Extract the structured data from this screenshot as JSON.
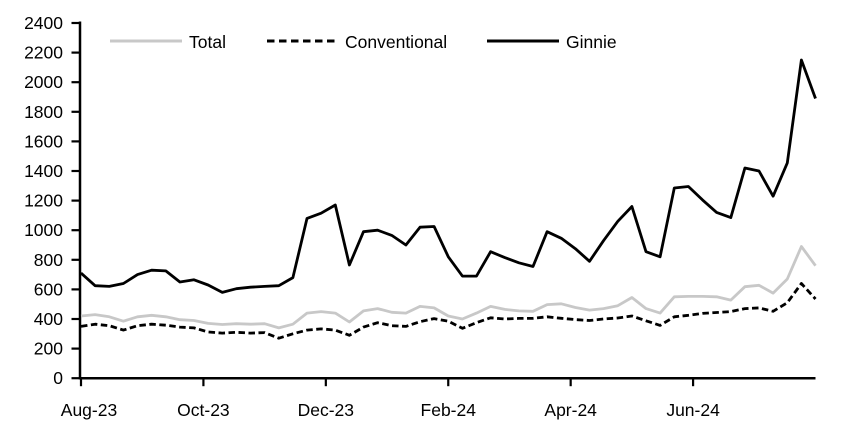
{
  "chart_data": {
    "type": "line",
    "title": "",
    "xlabel": "",
    "ylabel": "",
    "x_axis": {
      "tick_labels": [
        "Aug-23",
        "Oct-23",
        "Dec-23",
        "Feb-24",
        "Apr-24",
        "Jun-24"
      ],
      "range_note": "weekly points from Aug-23 to Aug-24, 53 points evenly spaced"
    },
    "y_axis": {
      "min": 0,
      "max": 2400,
      "step": 200,
      "tick_labels": [
        "0",
        "200",
        "400",
        "600",
        "800",
        "1000",
        "1200",
        "1400",
        "1600",
        "1800",
        "2000",
        "2200",
        "2400"
      ]
    },
    "legend_position": "top",
    "grid": false,
    "series": [
      {
        "name": "Total",
        "color": "#c8c8c8",
        "dash": "",
        "values": [
          420,
          430,
          415,
          385,
          415,
          425,
          415,
          395,
          390,
          370,
          363,
          368,
          365,
          368,
          340,
          365,
          440,
          450,
          440,
          380,
          455,
          470,
          445,
          440,
          485,
          475,
          420,
          400,
          440,
          485,
          465,
          455,
          452,
          497,
          503,
          478,
          460,
          470,
          490,
          545,
          470,
          440,
          550,
          553,
          553,
          550,
          528,
          618,
          628,
          575,
          670,
          890,
          760
        ]
      },
      {
        "name": "Conventional",
        "color": "#000000",
        "dash": "6.5 3.5",
        "values": [
          350,
          365,
          355,
          325,
          355,
          365,
          358,
          345,
          340,
          312,
          305,
          310,
          305,
          308,
          270,
          300,
          325,
          333,
          325,
          290,
          345,
          375,
          355,
          350,
          382,
          403,
          385,
          337,
          375,
          408,
          400,
          404,
          405,
          415,
          405,
          396,
          390,
          400,
          407,
          420,
          388,
          357,
          415,
          425,
          438,
          444,
          450,
          470,
          475,
          452,
          510,
          640,
          535
        ]
      },
      {
        "name": "Ginnie",
        "color": "#000000",
        "dash": "",
        "values": [
          710,
          625,
          620,
          640,
          700,
          730,
          725,
          650,
          665,
          630,
          580,
          605,
          615,
          620,
          625,
          680,
          1080,
          1115,
          1170,
          765,
          990,
          1000,
          965,
          900,
          1020,
          1025,
          820,
          690,
          690,
          855,
          815,
          780,
          755,
          990,
          945,
          875,
          790,
          930,
          1060,
          1160,
          855,
          820,
          1285,
          1295,
          1205,
          1120,
          1085,
          1420,
          1400,
          1230,
          1455,
          2150,
          1890
        ]
      }
    ]
  },
  "legend": {
    "items": [
      {
        "label": "Total"
      },
      {
        "label": "Conventional"
      },
      {
        "label": "Ginnie"
      }
    ]
  },
  "colors": {
    "axis": "#000000",
    "background": "#ffffff",
    "gray_series": "#c8c8c8",
    "black_series": "#000000"
  }
}
